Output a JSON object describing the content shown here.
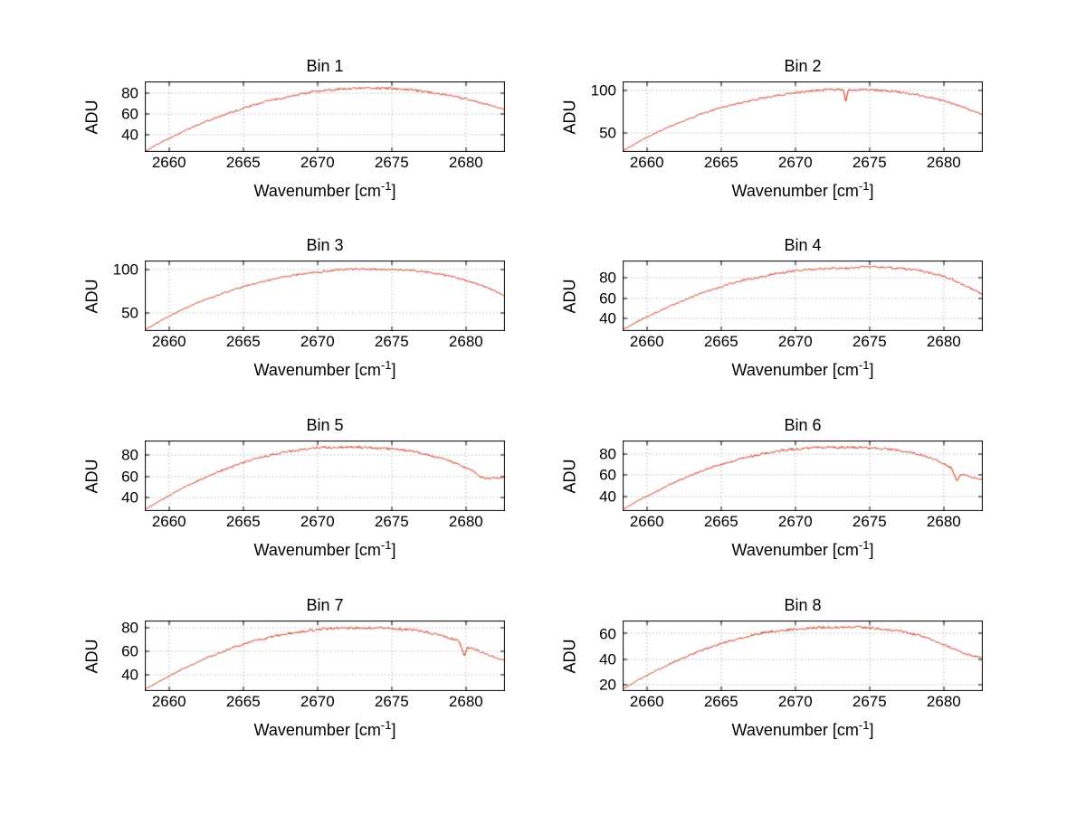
{
  "figure": {
    "background": "#ffffff",
    "frame_color": "#000000",
    "grid_color": "#9a9a9a",
    "text_color": "#000000"
  },
  "chart_data": [
    {
      "type": "line",
      "title": "Bin 1",
      "ylabel": "ADU",
      "xlabel_prefix": "Wavenumber [cm",
      "xlabel_sup": "-1",
      "xlabel_suffix": "]",
      "xlim": [
        2658.4,
        2682.6
      ],
      "ylim": [
        24,
        91
      ],
      "xticks": [
        2660,
        2665,
        2670,
        2675,
        2680
      ],
      "yticks": [
        40,
        60,
        80
      ],
      "line_color": "#cc2200",
      "noise_amplitude": 1.1,
      "x": [
        2658.5,
        2659.5,
        2660.5,
        2661.5,
        2662.5,
        2663.5,
        2664.5,
        2665.5,
        2666.5,
        2667.5,
        2668.5,
        2669.5,
        2670.5,
        2671.5,
        2672.5,
        2673.5,
        2674.5,
        2675.5,
        2676.5,
        2677.5,
        2678.5,
        2679.5,
        2680.5,
        2681.5,
        2682.5
      ],
      "y": [
        25,
        33,
        40,
        47,
        53,
        58,
        63,
        68,
        72,
        75,
        78,
        81,
        83,
        84,
        85,
        85,
        85,
        84,
        83,
        81,
        79,
        76,
        73,
        69,
        65
      ]
    },
    {
      "type": "line",
      "title": "Bin 2",
      "ylabel": "ADU",
      "xlabel_prefix": "Wavenumber [cm",
      "xlabel_sup": "-1",
      "xlabel_suffix": "]",
      "xlim": [
        2658.4,
        2682.6
      ],
      "ylim": [
        28,
        110
      ],
      "xticks": [
        2660,
        2665,
        2670,
        2675,
        2680
      ],
      "yticks": [
        50,
        100
      ],
      "line_color": "#cc2200",
      "noise_amplitude": 1.3,
      "x": [
        2658.5,
        2659.5,
        2660.5,
        2661.5,
        2662.5,
        2663.5,
        2664.5,
        2665.5,
        2666.5,
        2667.5,
        2668.5,
        2669.5,
        2670.5,
        2671.5,
        2672.5,
        2673.25,
        2673.4,
        2673.55,
        2674.5,
        2675.5,
        2676.5,
        2677.5,
        2678.5,
        2679.5,
        2680.5,
        2681.5,
        2682.5
      ],
      "y": [
        30,
        40,
        49,
        57,
        64,
        71,
        77,
        82,
        86,
        90,
        93,
        96,
        98,
        100,
        101,
        100.5,
        86,
        100.3,
        101,
        100,
        99,
        97,
        94,
        90,
        85,
        79,
        72
      ]
    },
    {
      "type": "line",
      "title": "Bin 3",
      "ylabel": "ADU",
      "xlabel_prefix": "Wavenumber [cm",
      "xlabel_sup": "-1",
      "xlabel_suffix": "]",
      "xlim": [
        2658.4,
        2682.6
      ],
      "ylim": [
        30,
        110
      ],
      "xticks": [
        2660,
        2665,
        2670,
        2675,
        2680
      ],
      "yticks": [
        50,
        100
      ],
      "line_color": "#cc2200",
      "noise_amplitude": 1.2,
      "x": [
        2658.5,
        2659.5,
        2660.5,
        2661.5,
        2662.5,
        2663.5,
        2664.5,
        2665.5,
        2666.5,
        2667.5,
        2668.5,
        2669.5,
        2670.5,
        2671.5,
        2672.5,
        2673.5,
        2674.5,
        2675.5,
        2676.5,
        2677.5,
        2678.5,
        2679.5,
        2680.5,
        2681.5,
        2682.5
      ],
      "y": [
        32,
        42,
        51,
        59,
        66,
        72,
        78,
        83,
        87,
        91,
        94,
        96,
        98,
        100,
        101,
        101,
        100,
        100,
        99,
        97,
        94,
        90,
        85,
        79,
        71
      ]
    },
    {
      "type": "line",
      "title": "Bin 4",
      "ylabel": "ADU",
      "xlabel_prefix": "Wavenumber [cm",
      "xlabel_sup": "-1",
      "xlabel_suffix": "]",
      "xlim": [
        2658.4,
        2682.6
      ],
      "ylim": [
        28,
        97
      ],
      "xticks": [
        2660,
        2665,
        2670,
        2675,
        2680
      ],
      "yticks": [
        40,
        60,
        80
      ],
      "line_color": "#cc2200",
      "noise_amplitude": 1.2,
      "x": [
        2658.5,
        2659.5,
        2660.5,
        2661.5,
        2662.5,
        2663.5,
        2664.5,
        2665.5,
        2666.5,
        2667.5,
        2668.5,
        2669.5,
        2670.5,
        2671.5,
        2672.5,
        2673.5,
        2674.5,
        2675.5,
        2676.5,
        2677.5,
        2678.5,
        2679.5,
        2680.5,
        2681.5,
        2682.5
      ],
      "y": [
        30,
        38,
        45,
        52,
        58,
        64,
        69,
        74,
        78,
        81,
        84,
        86,
        88,
        89,
        90,
        90,
        91,
        91,
        90,
        89,
        87,
        84,
        79,
        72,
        65
      ]
    },
    {
      "type": "line",
      "title": "Bin 5",
      "ylabel": "ADU",
      "xlabel_prefix": "Wavenumber [cm",
      "xlabel_sup": "-1",
      "xlabel_suffix": "]",
      "xlim": [
        2658.4,
        2682.6
      ],
      "ylim": [
        28,
        93
      ],
      "xticks": [
        2660,
        2665,
        2670,
        2675,
        2680
      ],
      "yticks": [
        40,
        60,
        80
      ],
      "line_color": "#cc2200",
      "noise_amplitude": 1.2,
      "x": [
        2658.5,
        2659.5,
        2660.5,
        2661.5,
        2662.5,
        2663.5,
        2664.5,
        2665.5,
        2666.5,
        2667.5,
        2668.5,
        2669.5,
        2670.5,
        2671.5,
        2672.5,
        2673.5,
        2674.5,
        2675.5,
        2676.5,
        2677.5,
        2678.5,
        2679.5,
        2680.5,
        2681.0,
        2681.5,
        2682.5
      ],
      "y": [
        30,
        38,
        46,
        53,
        59,
        65,
        70,
        75,
        79,
        82,
        84,
        86,
        87,
        87,
        87,
        87,
        86,
        85,
        83,
        80,
        76,
        71,
        65,
        59,
        58,
        59
      ]
    },
    {
      "type": "line",
      "title": "Bin 6",
      "ylabel": "ADU",
      "xlabel_prefix": "Wavenumber [cm",
      "xlabel_sup": "-1",
      "xlabel_suffix": "]",
      "xlim": [
        2658.4,
        2682.6
      ],
      "ylim": [
        27,
        92
      ],
      "xticks": [
        2660,
        2665,
        2670,
        2675,
        2680
      ],
      "yticks": [
        40,
        60,
        80
      ],
      "line_color": "#cc2200",
      "noise_amplitude": 1.2,
      "x": [
        2658.5,
        2659.5,
        2660.5,
        2661.5,
        2662.5,
        2663.5,
        2664.5,
        2665.5,
        2666.5,
        2667.5,
        2668.5,
        2669.5,
        2670.5,
        2671.5,
        2672.5,
        2673.5,
        2674.5,
        2675.5,
        2676.5,
        2677.5,
        2678.5,
        2679.5,
        2680.5,
        2680.9,
        2681.1,
        2681.5,
        2682.5
      ],
      "y": [
        29,
        37,
        44,
        51,
        57,
        63,
        68,
        72,
        76,
        79,
        82,
        84,
        85,
        86,
        86,
        86,
        86,
        85,
        84,
        82,
        79,
        74,
        67,
        54,
        61,
        60,
        56
      ]
    },
    {
      "type": "line",
      "title": "Bin 7",
      "ylabel": "ADU",
      "xlabel_prefix": "Wavenumber [cm",
      "xlabel_sup": "-1",
      "xlabel_suffix": "]",
      "xlim": [
        2658.4,
        2682.6
      ],
      "ylim": [
        26,
        86
      ],
      "xticks": [
        2660,
        2665,
        2670,
        2675,
        2680
      ],
      "yticks": [
        40,
        60,
        80
      ],
      "line_color": "#cc2200",
      "noise_amplitude": 1.1,
      "x": [
        2658.5,
        2659.5,
        2660.5,
        2661.5,
        2662.5,
        2663.5,
        2664.5,
        2665.5,
        2666.5,
        2667.5,
        2668.5,
        2669.5,
        2670.5,
        2671.5,
        2672.5,
        2673.5,
        2674.5,
        2675.5,
        2676.5,
        2677.5,
        2678.5,
        2679.5,
        2679.9,
        2680.1,
        2680.5,
        2681.5,
        2682.5
      ],
      "y": [
        28,
        35,
        42,
        48,
        54,
        59,
        64,
        68,
        71,
        74,
        76,
        78,
        79,
        80,
        80,
        80,
        80,
        79,
        78,
        76,
        73,
        69,
        56,
        63,
        62,
        57,
        52
      ]
    },
    {
      "type": "line",
      "title": "Bin 8",
      "ylabel": "ADU",
      "xlabel_prefix": "Wavenumber [cm",
      "xlabel_sup": "-1",
      "xlabel_suffix": "]",
      "xlim": [
        2658.4,
        2682.6
      ],
      "ylim": [
        15,
        70
      ],
      "xticks": [
        2660,
        2665,
        2670,
        2675,
        2680
      ],
      "yticks": [
        20,
        40,
        60
      ],
      "line_color": "#cc2200",
      "noise_amplitude": 1.0,
      "x": [
        2658.5,
        2659.5,
        2660.5,
        2661.5,
        2662.5,
        2663.5,
        2664.5,
        2665.5,
        2666.5,
        2667.5,
        2668.5,
        2669.5,
        2670.5,
        2671.5,
        2672.5,
        2673.5,
        2674.5,
        2675.5,
        2676.5,
        2677.5,
        2678.5,
        2679.5,
        2680.5,
        2681.5,
        2682.5
      ],
      "y": [
        17,
        24,
        30,
        36,
        41,
        46,
        50,
        54,
        57,
        60,
        62,
        63,
        64,
        65,
        65,
        65,
        65,
        64,
        63,
        61,
        58,
        54,
        49,
        44,
        41
      ]
    }
  ]
}
